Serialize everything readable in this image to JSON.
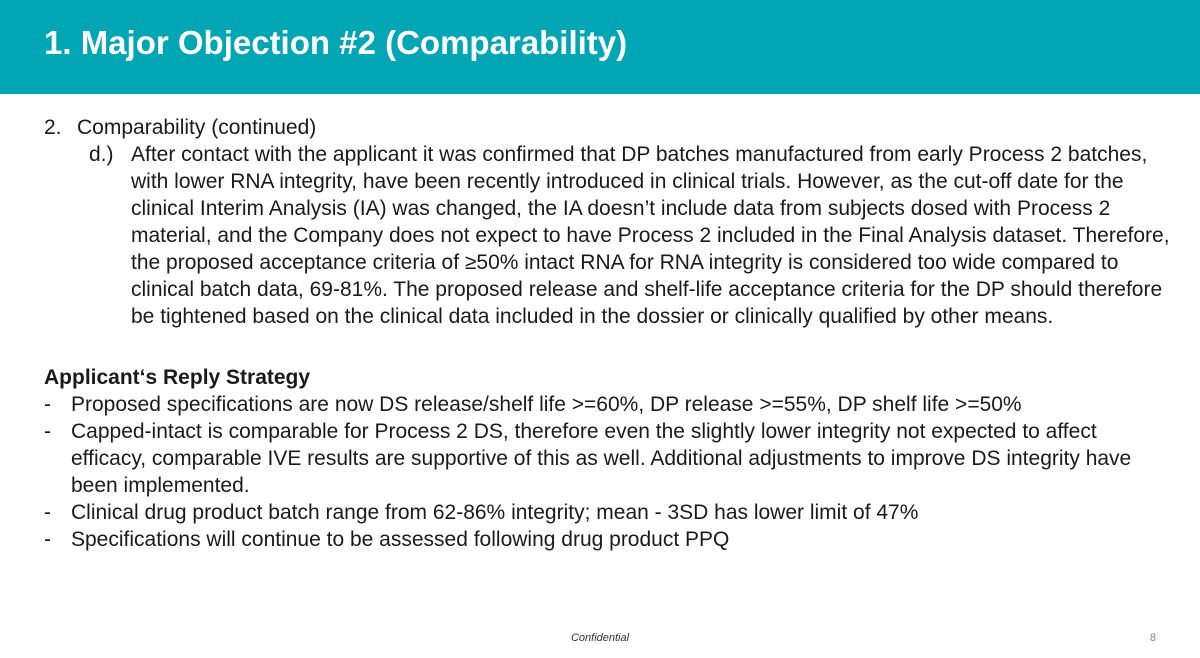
{
  "slide": {
    "title": "1. Major Objection #2 (Comparability)",
    "header_color": "#00a6b4"
  },
  "section": {
    "number": "2.",
    "title": "Comparability (continued)",
    "subitem_marker": "d.)",
    "subitem_text": "After contact with the applicant it was confirmed that DP batches manufactured from early Process 2 batches, with lower RNA integrity, have been recently introduced in clinical trials. However, as the cut-off date for the clinical Interim Analysis (IA) was changed, the IA doesn’t include data from subjects dosed with Process 2 material, and the Company does not expect to have Process 2 included in the Final Analysis dataset. Therefore, the proposed acceptance criteria of ≥50% intact RNA for RNA integrity is considered too wide compared to clinical batch data, 69-81%. The proposed release and shelf-life acceptance criteria for the DP should therefore be tightened based on the clinical data included in the dossier or clinically qualified by other means."
  },
  "strategy": {
    "title": "Applicant‘s Reply Strategy",
    "bullet_marker": "-",
    "bullets": [
      "Proposed specifications are now DS release/shelf life >=60%, DP release >=55%, DP shelf life >=50%",
      "Capped-intact is comparable for Process 2 DS, therefore even the slightly lower integrity not expected to affect efficacy, comparable IVE results are supportive of this as well. Additional adjustments to improve DS integrity have been implemented.",
      "Clinical drug product batch range from 62-86% integrity; mean - 3SD has lower limit of 47%",
      "Specifications will continue to be assessed following drug product PPQ"
    ]
  },
  "footer": {
    "confidential": "Confidential",
    "page_number": "8"
  }
}
